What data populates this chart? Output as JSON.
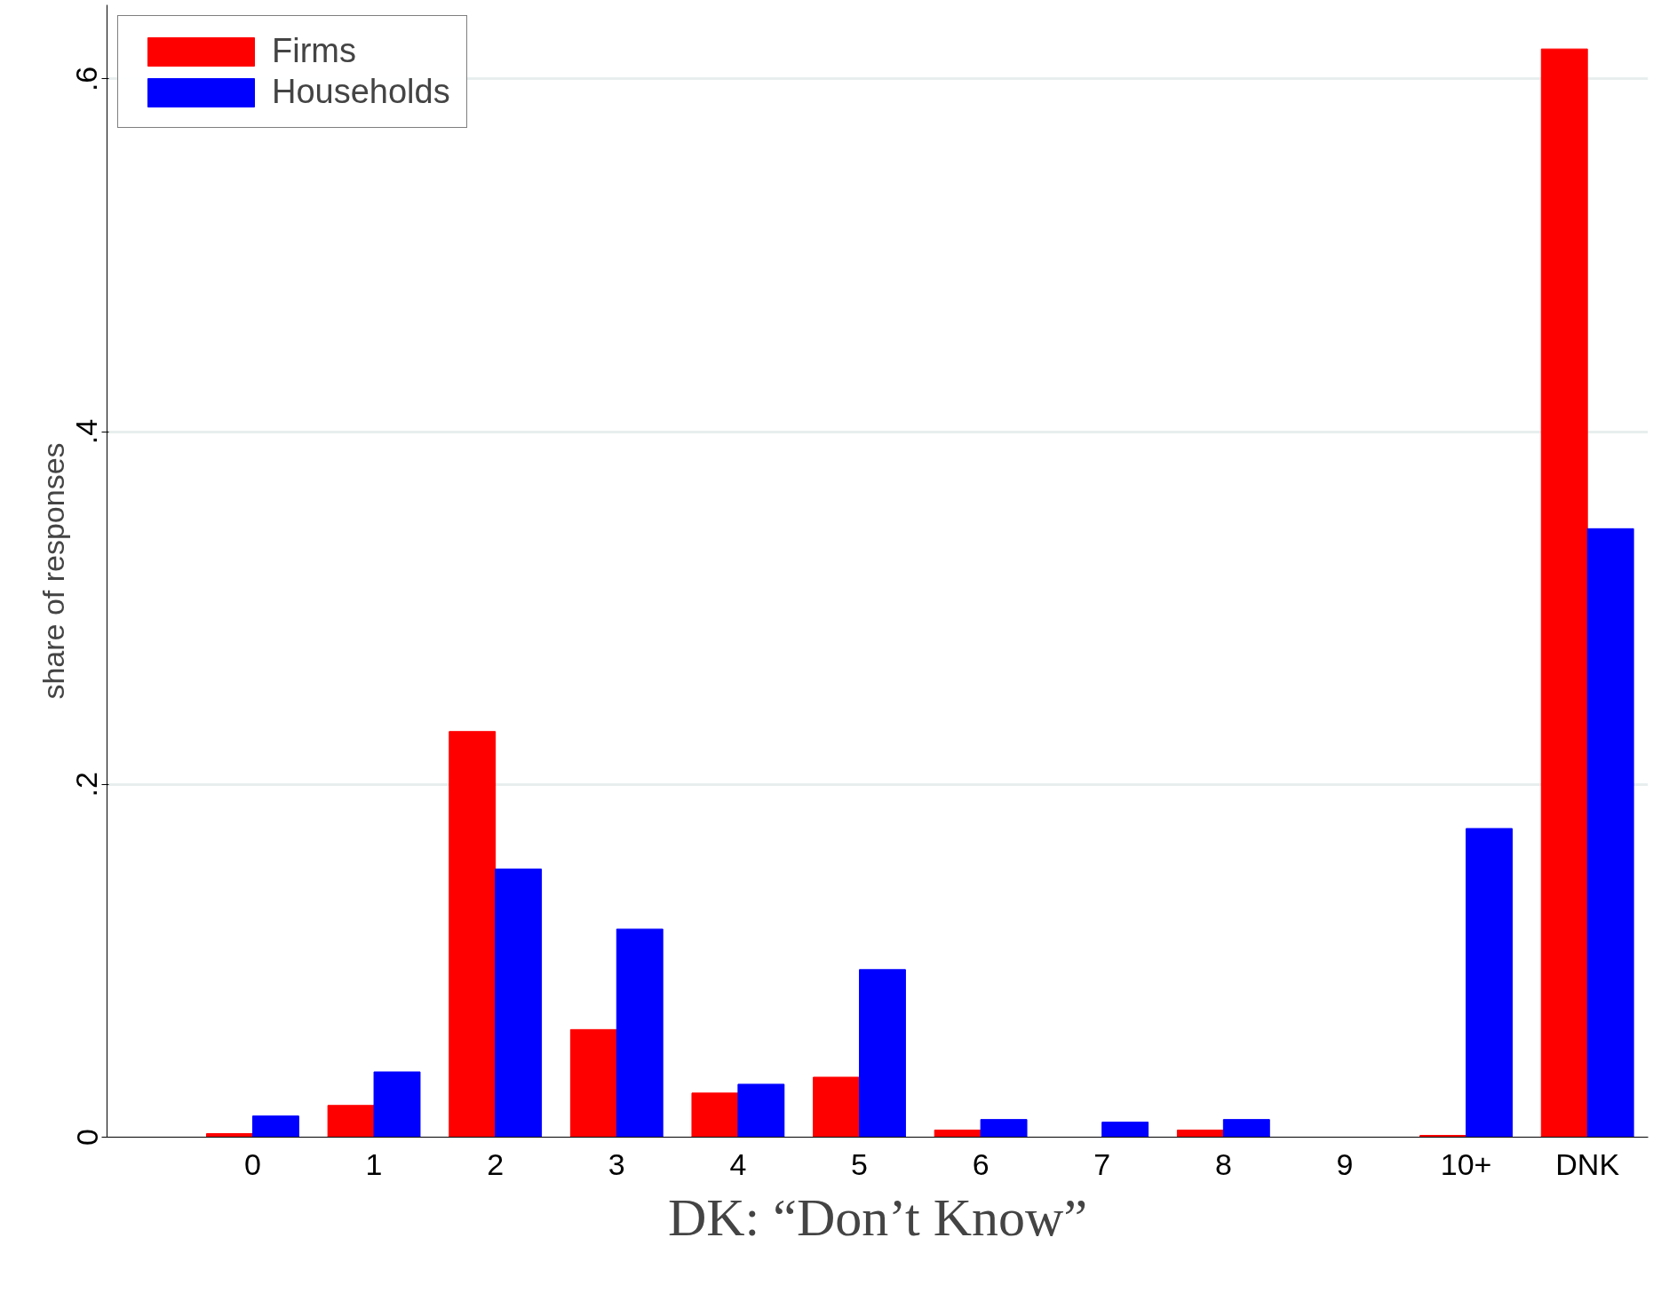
{
  "chart_data": {
    "type": "bar",
    "xlabel": "DK: “Don’t Know”",
    "ylabel": "share of responses",
    "categories": [
      "0",
      "1",
      "2",
      "3",
      "4",
      "5",
      "6",
      "7",
      "8",
      "9",
      "10+",
      "DNK"
    ],
    "series": [
      {
        "name": "Firms",
        "color": "#ff0000",
        "values": [
          0.002,
          0.018,
          0.23,
          0.061,
          0.025,
          0.034,
          0.004,
          null,
          0.004,
          null,
          0.001,
          0.617
        ]
      },
      {
        "name": "Households",
        "color": "#0000ff",
        "values": [
          0.012,
          0.037,
          0.152,
          0.118,
          0.03,
          0.095,
          0.01,
          0.0085,
          0.01,
          null,
          0.175,
          0.345
        ]
      }
    ],
    "ylim": [
      0,
      0.642
    ],
    "yticks": [
      0,
      {
        "value": 0.2,
        "label": ".2"
      },
      {
        "value": 0.4,
        "label": ".4"
      },
      {
        "value": 0.6,
        "label": ".6"
      }
    ],
    "grid": "y",
    "legend": "top left"
  }
}
